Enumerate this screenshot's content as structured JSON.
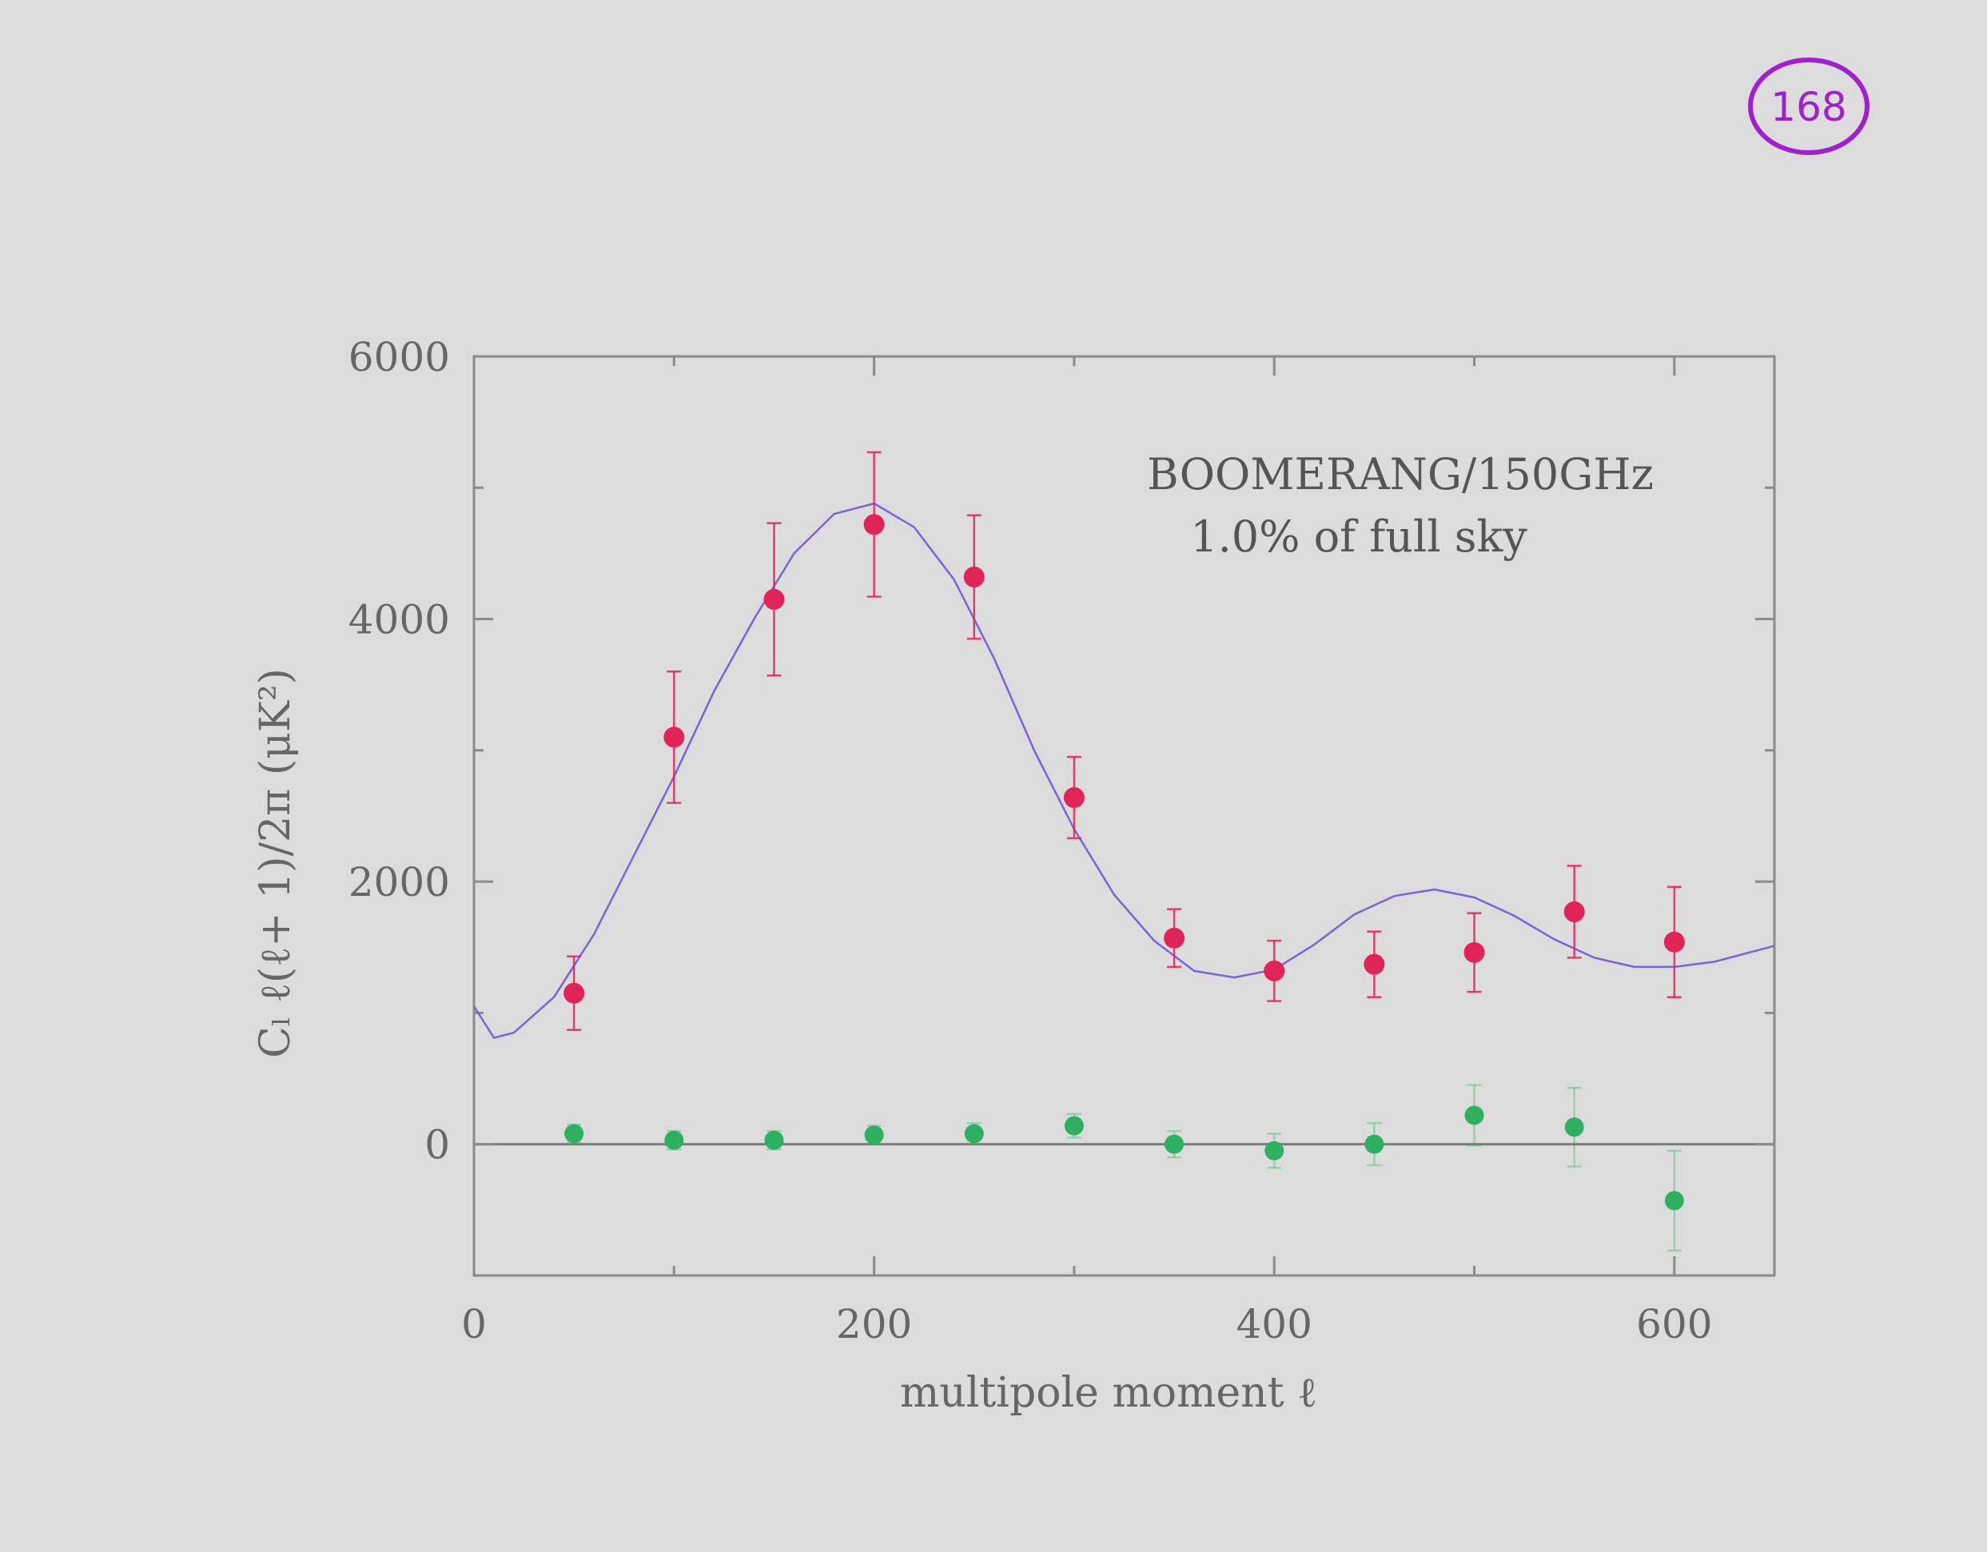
{
  "page_number": "168",
  "chart_data": {
    "type": "scatter",
    "annotation": [
      "BOOMERANG/150GHz",
      "1.0% of full sky"
    ],
    "xlabel": "multipole moment ℓ",
    "ylabel": "Cₗ ℓ(ℓ+ 1)/2π (μK²)",
    "xlim": [
      0,
      650
    ],
    "ylim": [
      -1000,
      6000
    ],
    "xticks": [
      0,
      200,
      400,
      600
    ],
    "yticks": [
      0,
      2000,
      4000,
      6000
    ],
    "grid": false,
    "series": [
      {
        "marker": "circle",
        "color": "#e0245a",
        "x": [
          50,
          100,
          150,
          200,
          250,
          300,
          350,
          400,
          450,
          500,
          550,
          600
        ],
        "y": [
          1150,
          3100,
          4150,
          4720,
          4320,
          2640,
          1570,
          1320,
          1370,
          1460,
          1770,
          1540
        ],
        "err": [
          280,
          500,
          580,
          550,
          470,
          310,
          220,
          230,
          250,
          300,
          350,
          420
        ]
      },
      {
        "marker": "circle",
        "color": "#2db060",
        "x": [
          50,
          100,
          150,
          200,
          250,
          300,
          350,
          400,
          450,
          500,
          550,
          600
        ],
        "y": [
          80,
          30,
          30,
          70,
          80,
          140,
          0,
          -50,
          0,
          220,
          130,
          -430
        ],
        "err": [
          70,
          70,
          70,
          70,
          80,
          90,
          100,
          130,
          160,
          230,
          300,
          380
        ]
      },
      {
        "type": "line",
        "color": "#7b62d6",
        "x": [
          0,
          10,
          20,
          40,
          60,
          80,
          100,
          120,
          140,
          160,
          180,
          200,
          220,
          240,
          260,
          280,
          300,
          320,
          340,
          360,
          380,
          400,
          420,
          440,
          460,
          480,
          500,
          520,
          540,
          560,
          580,
          600,
          620,
          650
        ],
        "y": [
          1050,
          810,
          850,
          1120,
          1600,
          2200,
          2800,
          3450,
          4000,
          4500,
          4800,
          4880,
          4700,
          4300,
          3700,
          3000,
          2400,
          1900,
          1550,
          1320,
          1270,
          1330,
          1520,
          1750,
          1890,
          1940,
          1880,
          1740,
          1560,
          1420,
          1350,
          1350,
          1390,
          1510
        ]
      }
    ]
  }
}
